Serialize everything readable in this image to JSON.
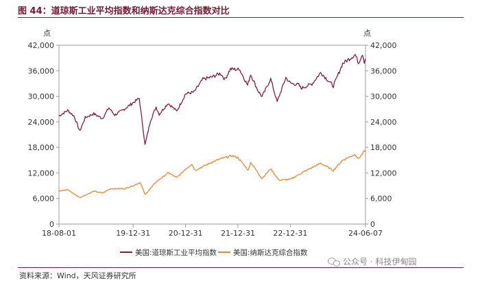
{
  "title": "图 44：道琼斯工业平均指数和纳斯达克综合指数对比",
  "source": "资料来源：Wind，天风证券研究所",
  "watermark": "公众号 · 科技伊甸园",
  "colors": {
    "title": "#7a1631",
    "dow": "#8b1a3c",
    "nasdaq": "#f0862c",
    "axis": "#999999"
  },
  "chart_data": {
    "type": "line",
    "ylabel_left": "点",
    "ylabel_right": "点",
    "ylim": [
      0,
      42000
    ],
    "yticks": [
      0,
      6000,
      12000,
      18000,
      24000,
      30000,
      36000,
      42000
    ],
    "ytick_labels": [
      "0",
      "6,000",
      "12,000",
      "18,000",
      "24,000",
      "30,000",
      "36,000",
      "42,000"
    ],
    "xticks": [
      "2018-08-01",
      "2019-12-31",
      "2020-12-31",
      "2021-12-31",
      "2022-12-31",
      "2024-06-07"
    ],
    "xtick_labels": [
      "18-08-01",
      "19-12-31",
      "20-12-31",
      "21-12-31",
      "22-12-31",
      "24-06-07"
    ],
    "grid": false,
    "legend_position": "bottom",
    "series": [
      {
        "name": "美国:道琼斯工业平均指数",
        "color": "#8b1a3c",
        "points": [
          [
            "2018-08-01",
            25400
          ],
          [
            "2018-10-01",
            26700
          ],
          [
            "2018-11-15",
            25300
          ],
          [
            "2018-12-24",
            21800
          ],
          [
            "2019-01-31",
            25000
          ],
          [
            "2019-03-31",
            25900
          ],
          [
            "2019-05-31",
            24800
          ],
          [
            "2019-07-15",
            27300
          ],
          [
            "2019-08-25",
            25600
          ],
          [
            "2019-10-31",
            27000
          ],
          [
            "2019-12-31",
            28500
          ],
          [
            "2020-02-12",
            29550
          ],
          [
            "2020-03-23",
            18600
          ],
          [
            "2020-04-30",
            24300
          ],
          [
            "2020-06-08",
            27500
          ],
          [
            "2020-06-30",
            25800
          ],
          [
            "2020-08-31",
            28400
          ],
          [
            "2020-10-30",
            26500
          ],
          [
            "2020-12-31",
            30600
          ],
          [
            "2021-02-28",
            31000
          ],
          [
            "2021-04-30",
            34000
          ],
          [
            "2021-06-30",
            34500
          ],
          [
            "2021-08-31",
            35400
          ],
          [
            "2021-10-01",
            34000
          ],
          [
            "2021-11-08",
            36400
          ],
          [
            "2021-12-31",
            36300
          ],
          [
            "2022-01-04",
            36800
          ],
          [
            "2022-03-08",
            32600
          ],
          [
            "2022-03-29",
            35200
          ],
          [
            "2022-05-20",
            31300
          ],
          [
            "2022-06-17",
            29900
          ],
          [
            "2022-08-16",
            34100
          ],
          [
            "2022-09-30",
            28700
          ],
          [
            "2022-11-30",
            34400
          ],
          [
            "2022-12-31",
            33100
          ],
          [
            "2023-02-28",
            32700
          ],
          [
            "2023-03-15",
            31900
          ],
          [
            "2023-05-31",
            32900
          ],
          [
            "2023-07-31",
            35600
          ],
          [
            "2023-10-27",
            32400
          ],
          [
            "2023-12-31",
            37700
          ],
          [
            "2024-03-28",
            39800
          ],
          [
            "2024-04-19",
            37800
          ],
          [
            "2024-05-17",
            40000
          ],
          [
            "2024-05-30",
            38100
          ],
          [
            "2024-06-07",
            38800
          ]
        ]
      },
      {
        "name": "美国:纳斯达克综合指数",
        "color": "#f0862c",
        "points": [
          [
            "2018-08-01",
            7700
          ],
          [
            "2018-10-01",
            8100
          ],
          [
            "2018-12-24",
            6200
          ],
          [
            "2019-03-31",
            7700
          ],
          [
            "2019-06-03",
            7300
          ],
          [
            "2019-07-25",
            8300
          ],
          [
            "2019-10-31",
            8300
          ],
          [
            "2019-12-31",
            9000
          ],
          [
            "2020-02-19",
            9800
          ],
          [
            "2020-03-23",
            6900
          ],
          [
            "2020-06-08",
            9900
          ],
          [
            "2020-09-02",
            12050
          ],
          [
            "2020-10-30",
            10900
          ],
          [
            "2020-12-31",
            12900
          ],
          [
            "2021-02-12",
            14100
          ],
          [
            "2021-03-08",
            12600
          ],
          [
            "2021-06-30",
            14500
          ],
          [
            "2021-09-07",
            15400
          ],
          [
            "2021-11-19",
            16050
          ],
          [
            "2021-12-31",
            15600
          ],
          [
            "2022-03-14",
            12600
          ],
          [
            "2022-03-29",
            14600
          ],
          [
            "2022-06-16",
            10700
          ],
          [
            "2022-08-16",
            13000
          ],
          [
            "2022-10-13",
            10300
          ],
          [
            "2022-12-31",
            10500
          ],
          [
            "2023-03-31",
            12200
          ],
          [
            "2023-07-31",
            14300
          ],
          [
            "2023-10-27",
            12600
          ],
          [
            "2023-12-31",
            15000
          ],
          [
            "2024-03-28",
            16400
          ],
          [
            "2024-04-19",
            15300
          ],
          [
            "2024-05-28",
            17000
          ],
          [
            "2024-06-07",
            17100
          ]
        ]
      }
    ]
  }
}
